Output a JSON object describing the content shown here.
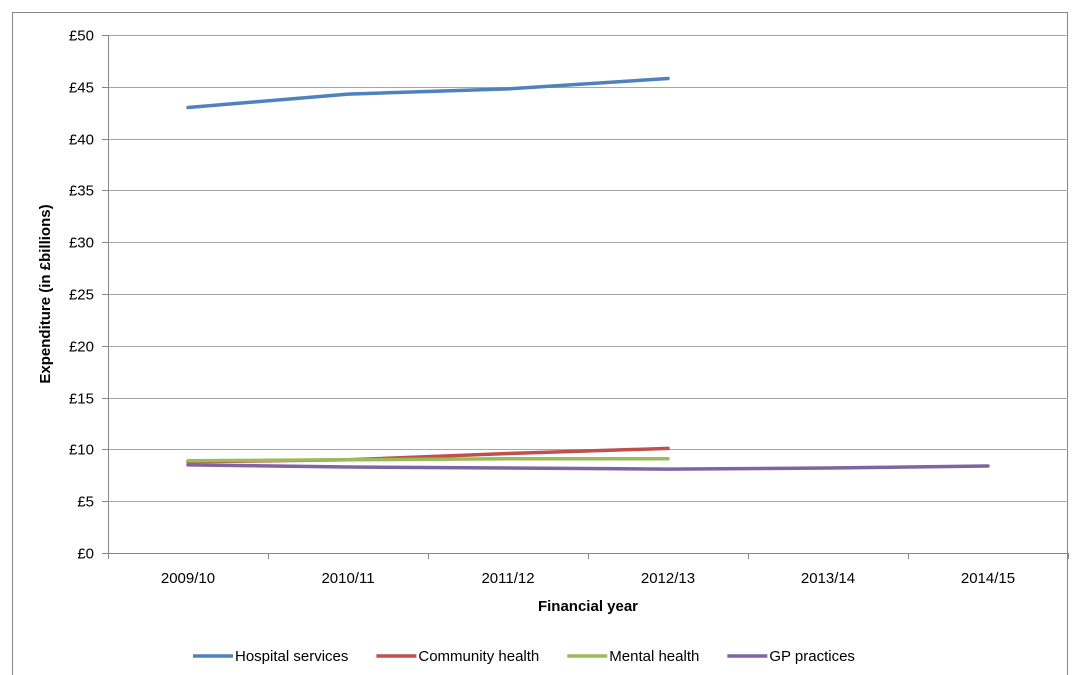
{
  "chart_data": {
    "type": "line",
    "title": "",
    "xlabel": "Financial year",
    "ylabel": "Expenditure (in £billions)",
    "categories": [
      "2009/10",
      "2010/11",
      "2011/12",
      "2012/13",
      "2013/14",
      "2014/15"
    ],
    "ylim": [
      0,
      50
    ],
    "yticks": [
      0,
      5,
      10,
      15,
      20,
      25,
      30,
      35,
      40,
      45,
      50
    ],
    "ytick_labels": [
      "£0",
      "£5",
      "£10",
      "£15",
      "£20",
      "£25",
      "£30",
      "£35",
      "£40",
      "£45",
      "£50"
    ],
    "grid": true,
    "legend_position": "bottom",
    "series": [
      {
        "name": "Hospital services",
        "color": "#4f81bd",
        "values": [
          43.0,
          44.3,
          44.8,
          45.8,
          null,
          null
        ]
      },
      {
        "name": "Community health",
        "color": "#c0504d",
        "values": [
          8.8,
          9.0,
          9.6,
          10.1,
          null,
          null
        ]
      },
      {
        "name": "Mental health",
        "color": "#9bbb59",
        "values": [
          8.9,
          9.0,
          9.1,
          9.1,
          null,
          null
        ]
      },
      {
        "name": "GP practices",
        "color": "#8064a2",
        "values": [
          8.5,
          8.3,
          8.2,
          8.1,
          8.2,
          8.4
        ]
      }
    ]
  }
}
